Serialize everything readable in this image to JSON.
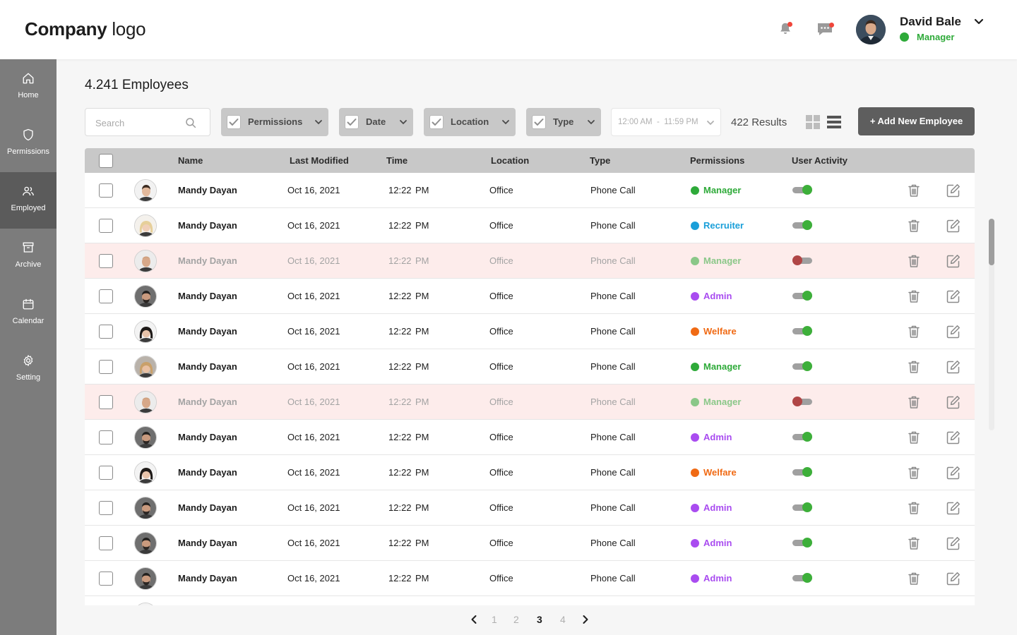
{
  "header": {
    "logo_bold": "Company",
    "logo_light": "logo",
    "user": {
      "name": "David Bale",
      "role": "Manager",
      "status_color": "#2eaa39"
    }
  },
  "sidebar": {
    "items": [
      {
        "label": "Home",
        "icon": "home-icon",
        "active": false
      },
      {
        "label": "Permissions",
        "icon": "shield-icon",
        "active": false
      },
      {
        "label": "Employed",
        "icon": "users-icon",
        "active": true
      },
      {
        "label": "Archive",
        "icon": "archive-icon",
        "active": false
      },
      {
        "label": "Calendar",
        "icon": "calendar-icon",
        "active": false
      },
      {
        "label": "Setting",
        "icon": "gear-icon",
        "active": false
      }
    ]
  },
  "page": {
    "title": "4.241 Employees"
  },
  "toolbar": {
    "search_placeholder": "Search",
    "filters": [
      "Permissions",
      "Date",
      "Location",
      "Type"
    ],
    "time_range": "12:00 AM  -  11:59 PM",
    "results": "422 Results",
    "add_button": "+ Add New Employee"
  },
  "table": {
    "columns": [
      "Name",
      "Last Modified",
      "Time",
      "Location",
      "Type",
      "Permissions",
      "User Activity"
    ],
    "rows": [
      {
        "name": "Mandy Dayan",
        "modified": "Oct 16, 2021",
        "time": "12:22",
        "ampm": "PM",
        "location": "Office",
        "type": "Phone Call",
        "permission": "Manager",
        "active": true,
        "avatar": "man-1"
      },
      {
        "name": "Mandy Dayan",
        "modified": "Oct 16, 2021",
        "time": "12:22",
        "ampm": "PM",
        "location": "Office",
        "type": "Phone Call",
        "permission": "Recruiter",
        "active": true,
        "avatar": "woman-blonde"
      },
      {
        "name": "Mandy Dayan",
        "modified": "Oct 16, 2021",
        "time": "12:22",
        "ampm": "PM",
        "location": "Office",
        "type": "Phone Call",
        "permission": "Manager",
        "active": false,
        "avatar": "man-bald"
      },
      {
        "name": "Mandy Dayan",
        "modified": "Oct 16, 2021",
        "time": "12:22",
        "ampm": "PM",
        "location": "Office",
        "type": "Phone Call",
        "permission": "Admin",
        "active": true,
        "avatar": "man-dark"
      },
      {
        "name": "Mandy Dayan",
        "modified": "Oct 16, 2021",
        "time": "12:22",
        "ampm": "PM",
        "location": "Office",
        "type": "Phone Call",
        "permission": "Welfare",
        "active": true,
        "avatar": "woman-dark"
      },
      {
        "name": "Mandy Dayan",
        "modified": "Oct 16, 2021",
        "time": "12:22",
        "ampm": "PM",
        "location": "Office",
        "type": "Phone Call",
        "permission": "Manager",
        "active": true,
        "avatar": "woman-blonde-2"
      },
      {
        "name": "Mandy Dayan",
        "modified": "Oct 16, 2021",
        "time": "12:22",
        "ampm": "PM",
        "location": "Office",
        "type": "Phone Call",
        "permission": "Manager",
        "active": false,
        "avatar": "man-bald"
      },
      {
        "name": "Mandy Dayan",
        "modified": "Oct 16, 2021",
        "time": "12:22",
        "ampm": "PM",
        "location": "Office",
        "type": "Phone Call",
        "permission": "Admin",
        "active": true,
        "avatar": "man-dark"
      },
      {
        "name": "Mandy Dayan",
        "modified": "Oct 16, 2021",
        "time": "12:22",
        "ampm": "PM",
        "location": "Office",
        "type": "Phone Call",
        "permission": "Welfare",
        "active": true,
        "avatar": "woman-dark"
      },
      {
        "name": "Mandy Dayan",
        "modified": "Oct 16, 2021",
        "time": "12:22",
        "ampm": "PM",
        "location": "Office",
        "type": "Phone Call",
        "permission": "Admin",
        "active": true,
        "avatar": "man-dark"
      },
      {
        "name": "Mandy Dayan",
        "modified": "Oct 16, 2021",
        "time": "12:22",
        "ampm": "PM",
        "location": "Office",
        "type": "Phone Call",
        "permission": "Admin",
        "active": true,
        "avatar": "man-dark"
      },
      {
        "name": "Mandy Dayan",
        "modified": "Oct 16, 2021",
        "time": "12:22",
        "ampm": "PM",
        "location": "Office",
        "type": "Phone Call",
        "permission": "Admin",
        "active": true,
        "avatar": "man-dark"
      },
      {
        "name": "",
        "modified": "",
        "time": "",
        "ampm": "",
        "location": "",
        "type": "",
        "permission": "",
        "active": true,
        "avatar": "woman-dark"
      }
    ]
  },
  "permission_colors": {
    "Manager": "#2eaa39",
    "Recruiter": "#1a9fd9",
    "Admin": "#a94cf0",
    "Welfare": "#f06a14"
  },
  "toggle_colors": {
    "on": "#3daf3a",
    "off": "#b04646"
  },
  "pagination": {
    "pages": [
      "1",
      "2",
      "3",
      "4"
    ],
    "current": "3"
  }
}
